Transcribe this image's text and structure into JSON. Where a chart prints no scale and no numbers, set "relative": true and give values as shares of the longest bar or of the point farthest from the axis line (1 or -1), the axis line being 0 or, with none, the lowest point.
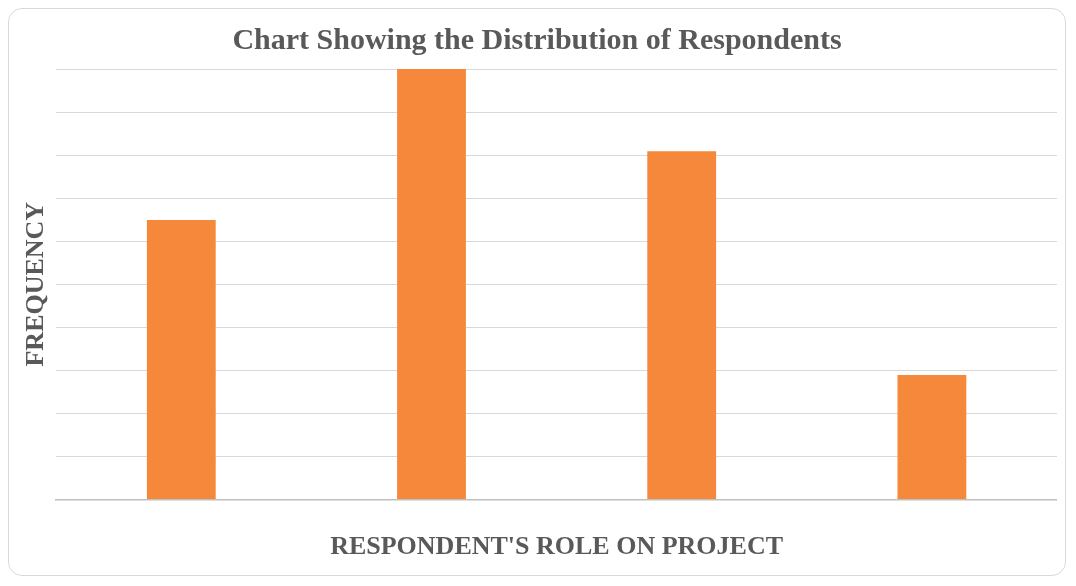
{
  "chart_data": {
    "type": "bar",
    "title": "Chart Showing the Distribution of Respondents",
    "xlabel": "RESPONDENT'S ROLE ON PROJECT",
    "ylabel": "FREQUENCY",
    "categories": [
      null,
      null,
      null,
      null
    ],
    "values": [
      0.649,
      1,
      0.809,
      0.289
    ],
    "color": "#f5883a",
    "relative": true,
    "grid": "y",
    "legend": false
  }
}
